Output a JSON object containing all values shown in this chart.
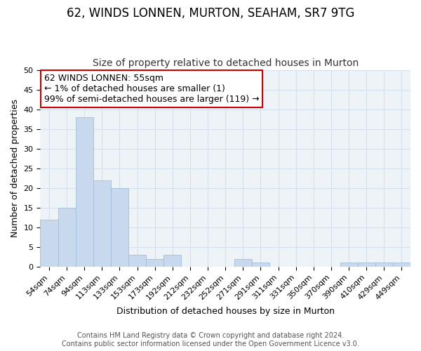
{
  "title": "62, WINDS LONNEN, MURTON, SEAHAM, SR7 9TG",
  "subtitle": "Size of property relative to detached houses in Murton",
  "xlabel": "Distribution of detached houses by size in Murton",
  "ylabel": "Number of detached properties",
  "bar_labels": [
    "54sqm",
    "74sqm",
    "94sqm",
    "113sqm",
    "133sqm",
    "153sqm",
    "173sqm",
    "192sqm",
    "212sqm",
    "232sqm",
    "252sqm",
    "271sqm",
    "291sqm",
    "311sqm",
    "331sqm",
    "350sqm",
    "370sqm",
    "390sqm",
    "410sqm",
    "429sqm",
    "449sqm"
  ],
  "bar_values": [
    12,
    15,
    38,
    22,
    20,
    3,
    2,
    3,
    0,
    0,
    0,
    2,
    1,
    0,
    0,
    0,
    0,
    1,
    1,
    1,
    1
  ],
  "bar_color": "#c8d8ed",
  "bar_edge_color": "#a0bed8",
  "ylim": [
    0,
    50
  ],
  "yticks": [
    0,
    5,
    10,
    15,
    20,
    25,
    30,
    35,
    40,
    45,
    50
  ],
  "annotation_lines": [
    "62 WINDS LONNEN: 55sqm",
    "← 1% of detached houses are smaller (1)",
    "99% of semi-detached houses are larger (119) →"
  ],
  "annotation_box_color": "#ffffff",
  "annotation_box_edge": "#cc0000",
  "footer_lines": [
    "Contains HM Land Registry data © Crown copyright and database right 2024.",
    "Contains public sector information licensed under the Open Government Licence v3.0."
  ],
  "title_fontsize": 12,
  "subtitle_fontsize": 10,
  "axis_label_fontsize": 9,
  "tick_fontsize": 8,
  "annotation_fontsize": 9,
  "footer_fontsize": 7,
  "grid_color": "#d4e0ec"
}
